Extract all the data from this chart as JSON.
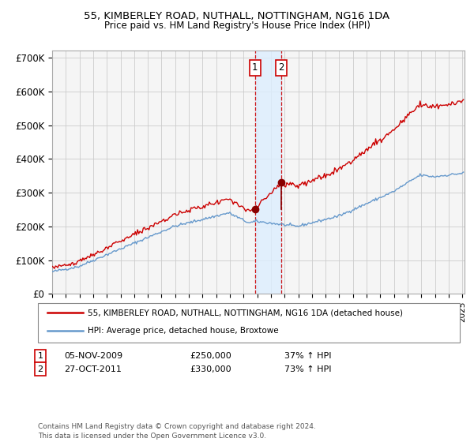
{
  "title": "55, KIMBERLEY ROAD, NUTHALL, NOTTINGHAM, NG16 1DA",
  "subtitle": "Price paid vs. HM Land Registry's House Price Index (HPI)",
  "property_line_color": "#cc0000",
  "hpi_line_color": "#6699cc",
  "background_color": "#ffffff",
  "plot_bg_color": "#f5f5f5",
  "grid_color": "#cccccc",
  "marker_color": "#880000",
  "highlight_bg": "#ddeeff",
  "dashed_line_color": "#cc0000",
  "sale1_date": "2009-11-05",
  "sale1_price": 250000,
  "sale1_label": "05-NOV-2009",
  "sale1_hpi_pct": "37% ↑ HPI",
  "sale2_date": "2011-10-27",
  "sale2_price": 330000,
  "sale2_label": "27-OCT-2011",
  "sale2_hpi_pct": "73% ↑ HPI",
  "ylim": [
    0,
    720000
  ],
  "yticks": [
    0,
    100000,
    200000,
    300000,
    400000,
    500000,
    600000,
    700000
  ],
  "legend_line1": "55, KIMBERLEY ROAD, NUTHALL, NOTTINGHAM, NG16 1DA (detached house)",
  "legend_line2": "HPI: Average price, detached house, Broxtowe",
  "footnote": "Contains HM Land Registry data © Crown copyright and database right 2024.\nThis data is licensed under the Open Government Licence v3.0."
}
